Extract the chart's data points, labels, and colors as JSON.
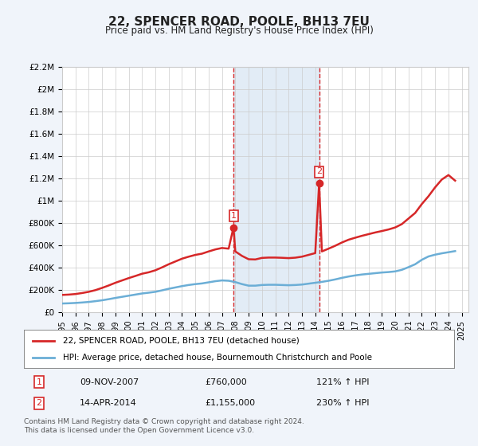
{
  "title": "22, SPENCER ROAD, POOLE, BH13 7EU",
  "subtitle": "Price paid vs. HM Land Registry's House Price Index (HPI)",
  "ylabel_max": 2200000,
  "yticks": [
    0,
    200000,
    400000,
    600000,
    800000,
    1000000,
    1200000,
    1400000,
    1600000,
    1800000,
    2000000,
    2200000
  ],
  "ytick_labels": [
    "£0",
    "£200K",
    "£400K",
    "£600K",
    "£800K",
    "£1M",
    "£1.2M",
    "£1.4M",
    "£1.6M",
    "£1.8M",
    "£2M",
    "£2.2M"
  ],
  "xmin": 1995.0,
  "xmax": 2025.5,
  "xticks": [
    1995,
    1996,
    1997,
    1998,
    1999,
    2000,
    2001,
    2002,
    2003,
    2004,
    2005,
    2006,
    2007,
    2008,
    2009,
    2010,
    2011,
    2012,
    2013,
    2014,
    2015,
    2016,
    2017,
    2018,
    2019,
    2020,
    2021,
    2022,
    2023,
    2024,
    2025
  ],
  "hpi_color": "#6baed6",
  "price_color": "#d62728",
  "sale1_x": 2007.86,
  "sale1_y": 760000,
  "sale1_label": "1",
  "sale2_x": 2014.29,
  "sale2_y": 1155000,
  "sale2_label": "2",
  "vline_color": "#d62728",
  "vline_shade_color": "#c6dbef",
  "hpi_line": {
    "x": [
      1995.0,
      1995.5,
      1996.0,
      1996.5,
      1997.0,
      1997.5,
      1998.0,
      1998.5,
      1999.0,
      1999.5,
      2000.0,
      2000.5,
      2001.0,
      2001.5,
      2002.0,
      2002.5,
      2003.0,
      2003.5,
      2004.0,
      2004.5,
      2005.0,
      2005.5,
      2006.0,
      2006.5,
      2007.0,
      2007.5,
      2008.0,
      2008.5,
      2009.0,
      2009.5,
      2010.0,
      2010.5,
      2011.0,
      2011.5,
      2012.0,
      2012.5,
      2013.0,
      2013.5,
      2014.0,
      2014.5,
      2015.0,
      2015.5,
      2016.0,
      2016.5,
      2017.0,
      2017.5,
      2018.0,
      2018.5,
      2019.0,
      2019.5,
      2020.0,
      2020.5,
      2021.0,
      2021.5,
      2022.0,
      2022.5,
      2023.0,
      2023.5,
      2024.0,
      2024.5
    ],
    "y": [
      78000,
      80000,
      83000,
      87000,
      92000,
      99000,
      107000,
      117000,
      128000,
      138000,
      148000,
      158000,
      168000,
      175000,
      183000,
      196000,
      210000,
      222000,
      234000,
      244000,
      252000,
      258000,
      268000,
      278000,
      285000,
      282000,
      270000,
      252000,
      238000,
      238000,
      244000,
      246000,
      246000,
      244000,
      242000,
      244000,
      248000,
      256000,
      264000,
      272000,
      282000,
      294000,
      308000,
      320000,
      330000,
      338000,
      344000,
      350000,
      356000,
      360000,
      366000,
      380000,
      404000,
      430000,
      470000,
      500000,
      516000,
      528000,
      538000,
      548000
    ]
  },
  "price_line": {
    "x": [
      1995.0,
      1995.5,
      1996.0,
      1996.5,
      1997.0,
      1997.5,
      1998.0,
      1998.5,
      1999.0,
      1999.5,
      2000.0,
      2000.5,
      2001.0,
      2001.5,
      2002.0,
      2002.5,
      2003.0,
      2003.5,
      2004.0,
      2004.5,
      2005.0,
      2005.5,
      2006.0,
      2006.5,
      2007.0,
      2007.5,
      2007.86,
      2008.0,
      2008.5,
      2009.0,
      2009.5,
      2010.0,
      2010.5,
      2011.0,
      2011.5,
      2012.0,
      2012.5,
      2013.0,
      2013.5,
      2014.0,
      2014.29,
      2014.5,
      2015.0,
      2015.5,
      2016.0,
      2016.5,
      2017.0,
      2017.5,
      2018.0,
      2018.5,
      2019.0,
      2019.5,
      2020.0,
      2020.5,
      2021.0,
      2021.5,
      2022.0,
      2022.5,
      2023.0,
      2023.5,
      2024.0,
      2024.5
    ],
    "y": [
      155000,
      158000,
      163000,
      172000,
      183000,
      198000,
      218000,
      240000,
      264000,
      285000,
      306000,
      325000,
      345000,
      358000,
      376000,
      402000,
      430000,
      455000,
      480000,
      498000,
      514000,
      525000,
      545000,
      563000,
      576000,
      570000,
      760000,
      545000,
      505000,
      475000,
      473000,
      487000,
      490000,
      490000,
      488000,
      485000,
      489000,
      498000,
      514000,
      530000,
      1155000,
      545000,
      570000,
      596000,
      625000,
      650000,
      668000,
      685000,
      700000,
      715000,
      728000,
      742000,
      760000,
      790000,
      840000,
      890000,
      970000,
      1040000,
      1120000,
      1190000,
      1230000,
      1180000
    ]
  },
  "legend_label1": "22, SPENCER ROAD, POOLE, BH13 7EU (detached house)",
  "legend_label2": "HPI: Average price, detached house, Bournemouth Christchurch and Poole",
  "table_row1": [
    "1",
    "09-NOV-2007",
    "£760,000",
    "121% ↑ HPI"
  ],
  "table_row2": [
    "2",
    "14-APR-2014",
    "£1,155,000",
    "230% ↑ HPI"
  ],
  "footer": "Contains HM Land Registry data © Crown copyright and database right 2024.\nThis data is licensed under the Open Government Licence v3.0.",
  "bg_color": "#f0f4fa",
  "plot_bg_color": "#ffffff",
  "grid_color": "#cccccc"
}
